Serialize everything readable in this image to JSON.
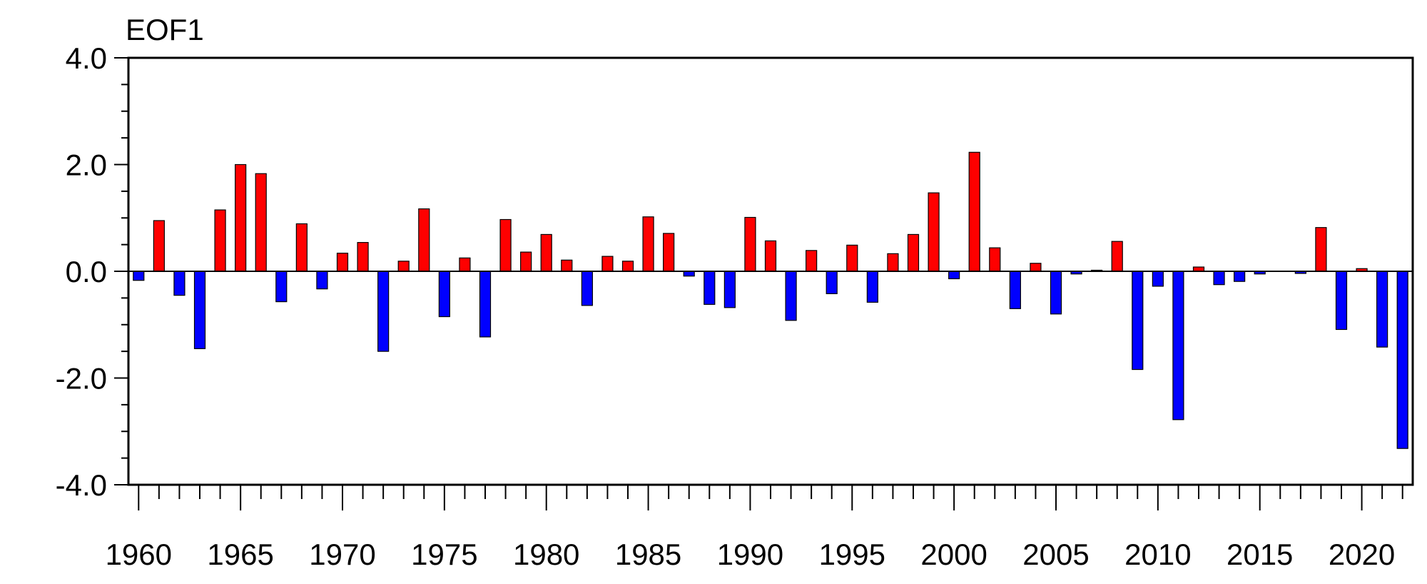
{
  "chart_data": {
    "type": "bar",
    "title": "EOF1",
    "xlabel": "",
    "ylabel": "",
    "ylim": [
      -4.0,
      4.0
    ],
    "yticks": [
      4.0,
      2.0,
      0.0,
      -2.0,
      -4.0
    ],
    "ytick_labels": [
      "4.0",
      "2.0",
      "0.0",
      "-2.0",
      "-4.0"
    ],
    "xlim": [
      1959.5,
      2022.5
    ],
    "xticks": [
      1960,
      1965,
      1970,
      1975,
      1980,
      1985,
      1990,
      1995,
      2000,
      2005,
      2010,
      2015,
      2020
    ],
    "xtick_labels": [
      "1960",
      "1965",
      "1970",
      "1975",
      "1980",
      "1985",
      "1990",
      "1995",
      "2000",
      "2005",
      "2010",
      "2015",
      "2020"
    ],
    "grid": false,
    "colors": {
      "positive": "#ff0000",
      "negative": "#0000ff",
      "axis": "#000000"
    },
    "years": [
      1960,
      1961,
      1962,
      1963,
      1964,
      1965,
      1966,
      1967,
      1968,
      1969,
      1970,
      1971,
      1972,
      1973,
      1974,
      1975,
      1976,
      1977,
      1978,
      1979,
      1980,
      1981,
      1982,
      1983,
      1984,
      1985,
      1986,
      1987,
      1988,
      1989,
      1990,
      1991,
      1992,
      1993,
      1994,
      1995,
      1996,
      1997,
      1998,
      1999,
      2000,
      2001,
      2002,
      2003,
      2004,
      2005,
      2006,
      2007,
      2008,
      2009,
      2010,
      2011,
      2012,
      2013,
      2014,
      2015,
      2016,
      2017,
      2018,
      2019,
      2020,
      2021,
      2022
    ],
    "values": [
      -0.17,
      0.95,
      -0.45,
      -1.45,
      1.15,
      2.0,
      1.83,
      -0.57,
      0.89,
      -0.33,
      0.34,
      0.54,
      -1.5,
      0.19,
      1.17,
      -0.85,
      0.25,
      -1.23,
      0.97,
      0.36,
      0.69,
      0.21,
      -0.64,
      0.28,
      0.19,
      1.02,
      0.71,
      -0.09,
      -0.62,
      -0.68,
      1.01,
      0.57,
      -0.92,
      0.39,
      -0.42,
      0.49,
      -0.58,
      0.33,
      0.69,
      1.47,
      -0.14,
      2.23,
      0.44,
      -0.7,
      0.15,
      -0.8,
      -0.05,
      0.02,
      0.56,
      -1.84,
      -0.28,
      -2.78,
      0.08,
      -0.25,
      -0.19,
      -0.05,
      0.0,
      -0.04,
      0.82,
      -1.09,
      0.05,
      -1.42,
      -3.32
    ]
  }
}
